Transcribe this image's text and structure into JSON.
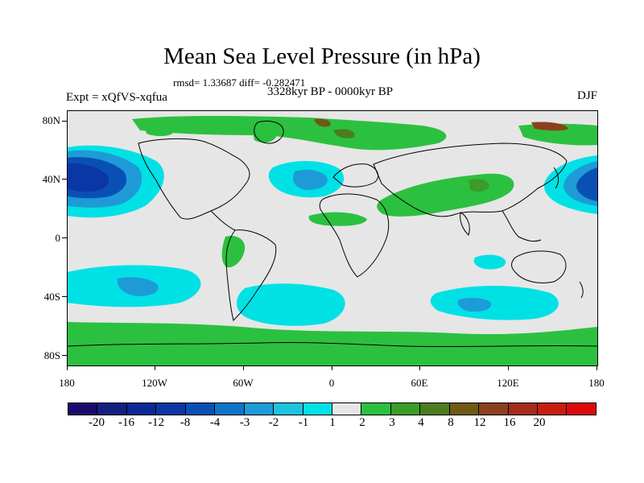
{
  "title": "Mean Sea Level Pressure (in hPa)",
  "stats": "rmsd= 1.33687 diff= -0.282471",
  "period": "3328kyr BP - 0000kyr BP",
  "experiment": "Expt = xQfVS-xqfua",
  "season": "DJF",
  "map": {
    "latitude_labels": [
      "80N",
      "40N",
      "0",
      "40S",
      "80S"
    ],
    "longitude_labels": [
      "180",
      "120W",
      "60W",
      "0",
      "60E",
      "120E",
      "180"
    ]
  },
  "colorbar": {
    "labels": [
      "-20",
      "-16",
      "-12",
      "-8",
      "-4",
      "-3",
      "-2",
      "-1",
      "1",
      "2",
      "3",
      "4",
      "8",
      "12",
      "16",
      "20"
    ],
    "colors": [
      "#1a0a6e",
      "#141f82",
      "#0a2896",
      "#0a37a5",
      "#0a50b4",
      "#0f73c8",
      "#1e9bd7",
      "#1ec3e1",
      "#00e1e6",
      "#e6e6e6",
      "#2cc040",
      "#3c9c28",
      "#4b7d1e",
      "#6e5a14",
      "#8c411e",
      "#a52d19",
      "#c81e0f",
      "#dc0a0a"
    ]
  }
}
